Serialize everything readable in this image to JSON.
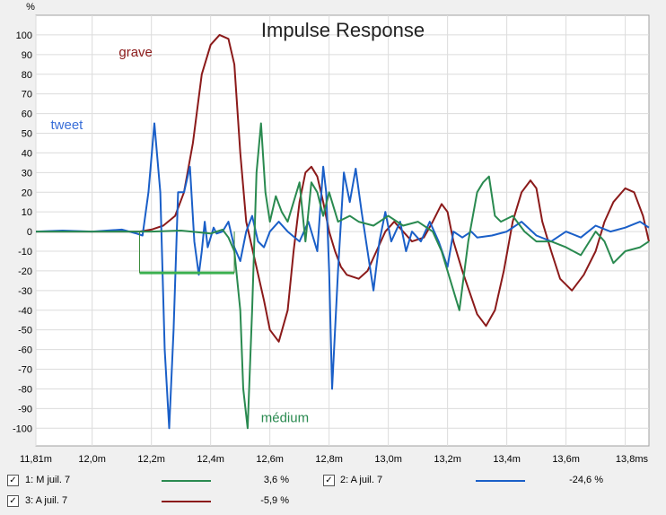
{
  "chart_data": {
    "type": "line",
    "title": "Impulse Response",
    "ylabel": "%",
    "xlim": [
      11.81,
      13.88
    ],
    "ylim": [
      -109,
      110
    ],
    "xticks": [
      {
        "v": 11.81,
        "label": "11,81m"
      },
      {
        "v": 12.0,
        "label": "12,0m"
      },
      {
        "v": 12.2,
        "label": "12,2m"
      },
      {
        "v": 12.4,
        "label": "12,4m"
      },
      {
        "v": 12.6,
        "label": "12,6m"
      },
      {
        "v": 12.8,
        "label": "12,8m"
      },
      {
        "v": 13.0,
        "label": "13,0m"
      },
      {
        "v": 13.2,
        "label": "13,2m"
      },
      {
        "v": 13.4,
        "label": "13,4m"
      },
      {
        "v": 13.6,
        "label": "13,6m"
      },
      {
        "v": 13.8,
        "label": "13,8ms"
      }
    ],
    "yticks": [
      100,
      90,
      80,
      70,
      60,
      50,
      40,
      30,
      20,
      10,
      0,
      -10,
      -20,
      -30,
      -40,
      -50,
      -60,
      -70,
      -80,
      -90,
      -100
    ],
    "grid": true,
    "series": [
      {
        "name": "grave",
        "color": "#8b1a1a",
        "points": [
          [
            11.81,
            0
          ],
          [
            12.1,
            0
          ],
          [
            12.16,
            0
          ],
          [
            12.2,
            1
          ],
          [
            12.24,
            3
          ],
          [
            12.28,
            8
          ],
          [
            12.31,
            20
          ],
          [
            12.34,
            45
          ],
          [
            12.37,
            80
          ],
          [
            12.4,
            95
          ],
          [
            12.43,
            100
          ],
          [
            12.46,
            98
          ],
          [
            12.48,
            85
          ],
          [
            12.5,
            40
          ],
          [
            12.52,
            5
          ],
          [
            12.55,
            -15
          ],
          [
            12.58,
            -35
          ],
          [
            12.6,
            -50
          ],
          [
            12.63,
            -56
          ],
          [
            12.66,
            -40
          ],
          [
            12.68,
            -10
          ],
          [
            12.7,
            15
          ],
          [
            12.72,
            30
          ],
          [
            12.74,
            33
          ],
          [
            12.76,
            28
          ],
          [
            12.78,
            15
          ],
          [
            12.8,
            0
          ],
          [
            12.82,
            -10
          ],
          [
            12.84,
            -18
          ],
          [
            12.86,
            -22
          ],
          [
            12.9,
            -24
          ],
          [
            12.93,
            -20
          ],
          [
            12.96,
            -10
          ],
          [
            12.99,
            0
          ],
          [
            13.02,
            5
          ],
          [
            13.05,
            0
          ],
          [
            13.08,
            -5
          ],
          [
            13.12,
            -3
          ],
          [
            13.15,
            5
          ],
          [
            13.18,
            14
          ],
          [
            13.2,
            10
          ],
          [
            13.22,
            -5
          ],
          [
            13.25,
            -20
          ],
          [
            13.3,
            -42
          ],
          [
            13.33,
            -48
          ],
          [
            13.36,
            -40
          ],
          [
            13.39,
            -20
          ],
          [
            13.42,
            5
          ],
          [
            13.45,
            20
          ],
          [
            13.48,
            26
          ],
          [
            13.5,
            22
          ],
          [
            13.52,
            5
          ],
          [
            13.55,
            -10
          ],
          [
            13.58,
            -24
          ],
          [
            13.62,
            -30
          ],
          [
            13.66,
            -22
          ],
          [
            13.7,
            -10
          ],
          [
            13.73,
            5
          ],
          [
            13.76,
            15
          ],
          [
            13.8,
            22
          ],
          [
            13.83,
            20
          ],
          [
            13.86,
            8
          ],
          [
            13.88,
            -5
          ]
        ]
      },
      {
        "name": "tweet",
        "color": "#1a5fc8",
        "points": [
          [
            11.81,
            0
          ],
          [
            11.9,
            0.5
          ],
          [
            12.0,
            0
          ],
          [
            12.1,
            1
          ],
          [
            12.15,
            -1
          ],
          [
            12.17,
            -2
          ],
          [
            12.19,
            20
          ],
          [
            12.21,
            55
          ],
          [
            12.23,
            20
          ],
          [
            12.245,
            -60
          ],
          [
            12.26,
            -100
          ],
          [
            12.275,
            -50
          ],
          [
            12.29,
            20
          ],
          [
            12.31,
            20
          ],
          [
            12.33,
            33
          ],
          [
            12.345,
            -5
          ],
          [
            12.36,
            -22
          ],
          [
            12.37,
            -10
          ],
          [
            12.38,
            5
          ],
          [
            12.39,
            -8
          ],
          [
            12.41,
            2
          ],
          [
            12.42,
            -1
          ],
          [
            12.44,
            0
          ],
          [
            12.46,
            5
          ],
          [
            12.48,
            -8
          ],
          [
            12.5,
            -15
          ],
          [
            12.52,
            0
          ],
          [
            12.54,
            8
          ],
          [
            12.56,
            -5
          ],
          [
            12.58,
            -8
          ],
          [
            12.6,
            0
          ],
          [
            12.63,
            5
          ],
          [
            12.66,
            0
          ],
          [
            12.7,
            -5
          ],
          [
            12.73,
            5
          ],
          [
            12.76,
            -10
          ],
          [
            12.78,
            33
          ],
          [
            12.79,
            20
          ],
          [
            12.8,
            -20
          ],
          [
            12.81,
            -80
          ],
          [
            12.83,
            -20
          ],
          [
            12.85,
            30
          ],
          [
            12.87,
            15
          ],
          [
            12.89,
            32
          ],
          [
            12.91,
            10
          ],
          [
            12.93,
            -10
          ],
          [
            12.95,
            -30
          ],
          [
            12.97,
            -5
          ],
          [
            12.99,
            10
          ],
          [
            13.01,
            -5
          ],
          [
            13.04,
            5
          ],
          [
            13.06,
            -10
          ],
          [
            13.08,
            0
          ],
          [
            13.11,
            -5
          ],
          [
            13.14,
            5
          ],
          [
            13.17,
            -5
          ],
          [
            13.2,
            -18
          ],
          [
            13.22,
            0
          ],
          [
            13.25,
            -3
          ],
          [
            13.28,
            0
          ],
          [
            13.3,
            -3
          ],
          [
            13.35,
            -2
          ],
          [
            13.4,
            0
          ],
          [
            13.45,
            5
          ],
          [
            13.5,
            -2
          ],
          [
            13.55,
            -5
          ],
          [
            13.6,
            0
          ],
          [
            13.65,
            -3
          ],
          [
            13.7,
            3
          ],
          [
            13.75,
            0
          ],
          [
            13.8,
            2
          ],
          [
            13.85,
            5
          ],
          [
            13.88,
            2
          ]
        ]
      },
      {
        "name": "médium",
        "color": "#2a8a50",
        "points": [
          [
            11.81,
            0
          ],
          [
            12.2,
            0
          ],
          [
            12.3,
            0.5
          ],
          [
            12.4,
            -1
          ],
          [
            12.44,
            1
          ],
          [
            12.46,
            -3
          ],
          [
            12.48,
            -10
          ],
          [
            12.5,
            -40
          ],
          [
            12.51,
            -80
          ],
          [
            12.525,
            -100
          ],
          [
            12.54,
            -40
          ],
          [
            12.555,
            30
          ],
          [
            12.57,
            55
          ],
          [
            12.585,
            20
          ],
          [
            12.6,
            5
          ],
          [
            12.62,
            18
          ],
          [
            12.64,
            10
          ],
          [
            12.66,
            5
          ],
          [
            12.68,
            15
          ],
          [
            12.7,
            25
          ],
          [
            12.72,
            -5
          ],
          [
            12.74,
            25
          ],
          [
            12.76,
            20
          ],
          [
            12.78,
            8
          ],
          [
            12.8,
            20
          ],
          [
            12.83,
            5
          ],
          [
            12.87,
            8
          ],
          [
            12.9,
            5
          ],
          [
            12.95,
            3
          ],
          [
            13.0,
            8
          ],
          [
            13.05,
            3
          ],
          [
            13.1,
            5
          ],
          [
            13.15,
            0
          ],
          [
            13.18,
            -10
          ],
          [
            13.21,
            -25
          ],
          [
            13.24,
            -40
          ],
          [
            13.27,
            -5
          ],
          [
            13.3,
            20
          ],
          [
            13.32,
            25
          ],
          [
            13.34,
            28
          ],
          [
            13.36,
            8
          ],
          [
            13.38,
            5
          ],
          [
            13.42,
            8
          ],
          [
            13.46,
            0
          ],
          [
            13.5,
            -5
          ],
          [
            13.55,
            -5
          ],
          [
            13.6,
            -8
          ],
          [
            13.65,
            -12
          ],
          [
            13.7,
            0
          ],
          [
            13.73,
            -5
          ],
          [
            13.76,
            -16
          ],
          [
            13.8,
            -10
          ],
          [
            13.85,
            -8
          ],
          [
            13.88,
            -5
          ]
        ]
      }
    ],
    "annotations": [
      {
        "text": "grave",
        "x": 12.09,
        "y": 89,
        "color": "#8b1a1a"
      },
      {
        "text": "tweet",
        "x": 11.86,
        "y": 52,
        "color": "#3a6fd8"
      },
      {
        "text": "médium",
        "x": 12.57,
        "y": -97,
        "color": "#2a8a50"
      }
    ],
    "bracket": {
      "x1": 12.16,
      "x2": 12.48,
      "y": -21,
      "color": "#3cb050"
    }
  },
  "legend": [
    {
      "label": "1: M juil. 7",
      "value": "3,6 %",
      "color": "#2a8a50",
      "checked": "✓"
    },
    {
      "label": "2: A juil. 7",
      "value": "-24,6 %",
      "color": "#1a5fc8",
      "checked": "✓"
    },
    {
      "label": "3: A juil. 7",
      "value": "-5,9 %",
      "color": "#8b1a1a",
      "checked": "✓"
    }
  ]
}
